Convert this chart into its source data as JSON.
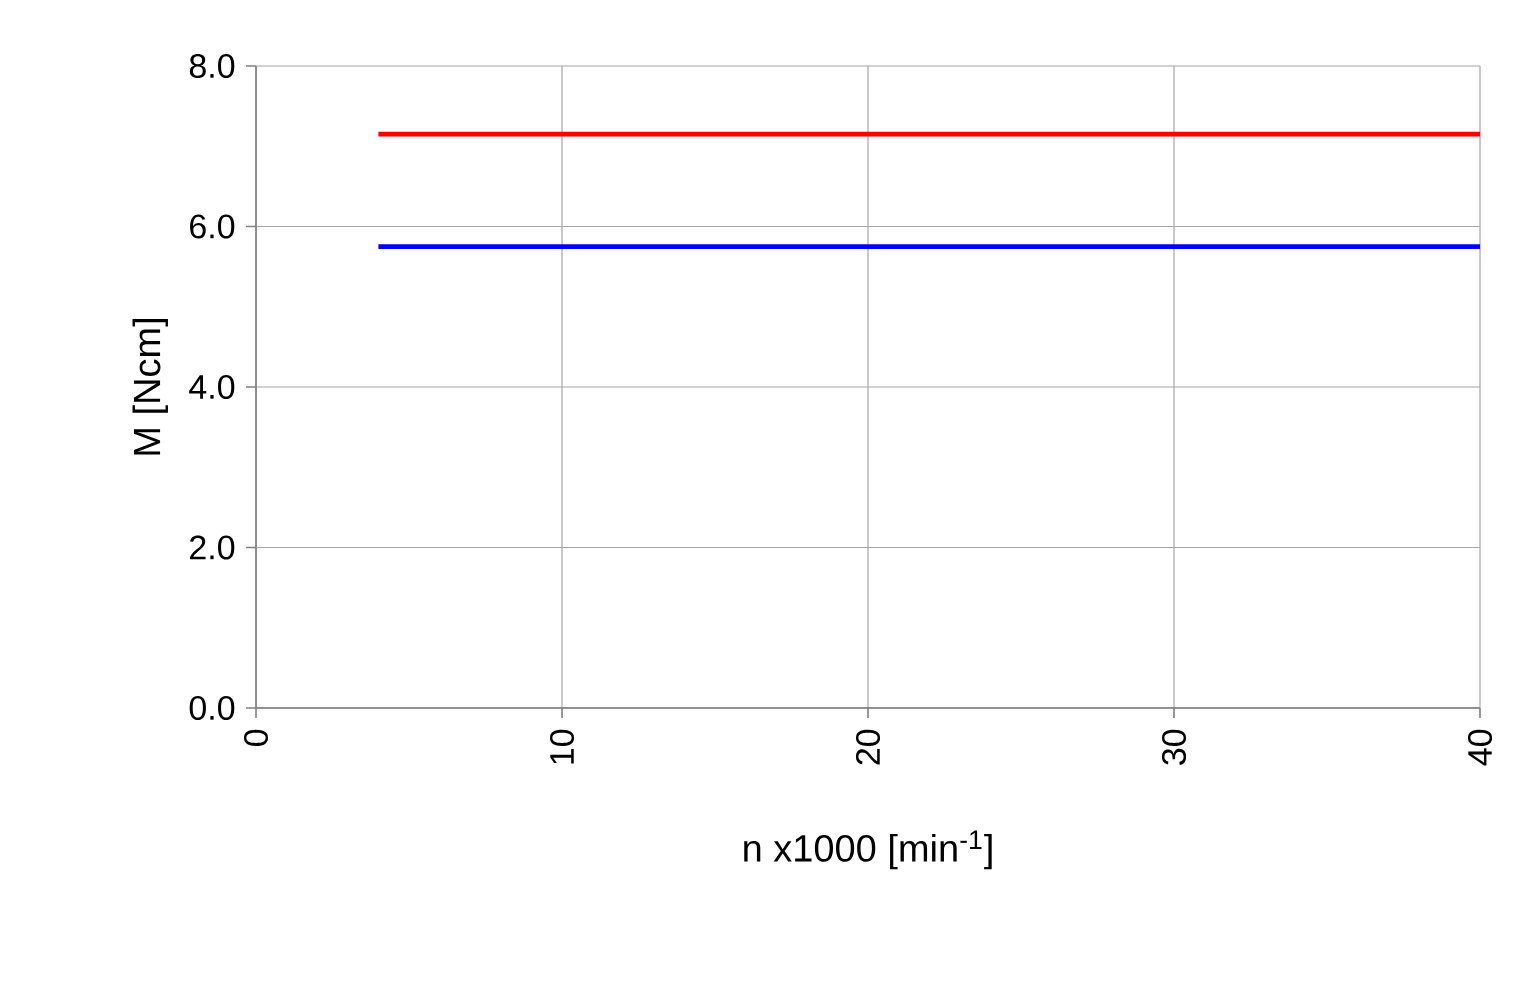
{
  "chart_data": {
    "type": "line",
    "xlabel": "n x1000 [min$^{-1}$]",
    "ylabel": "M [Ncm]",
    "xlim": [
      0,
      40
    ],
    "ylim": [
      0,
      8
    ],
    "xticks": [
      0,
      10,
      20,
      30,
      40
    ],
    "yticks": [
      {
        "value": 0,
        "label": "0.0"
      },
      {
        "value": 2,
        "label": "2.0"
      },
      {
        "value": 4,
        "label": "4.0"
      },
      {
        "value": 6,
        "label": "6.0"
      },
      {
        "value": 8,
        "label": "8.0"
      }
    ],
    "x": [
      4,
      40
    ],
    "grid": true,
    "marker": "none",
    "line_style": "solid",
    "series": [
      {
        "color": "#ff0000",
        "values": [
          7.15,
          7.15
        ]
      },
      {
        "color": "#0000ff",
        "values": [
          5.75,
          5.75
        ]
      }
    ]
  }
}
